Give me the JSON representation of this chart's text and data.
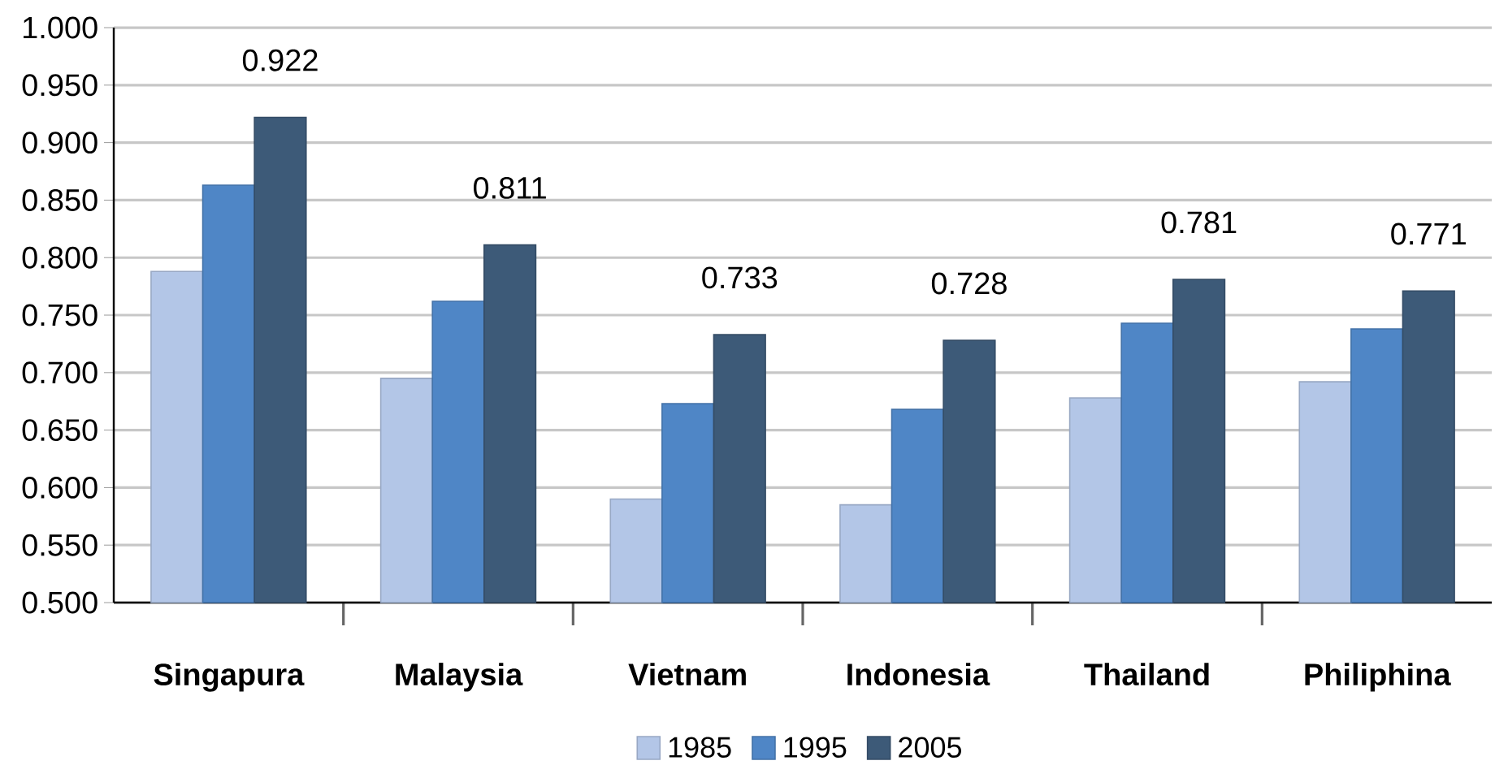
{
  "chart_data": {
    "type": "bar",
    "categories": [
      "Singapura",
      "Malaysia",
      "Vietnam",
      "Indonesia",
      "Thailand",
      "Philiphina"
    ],
    "series": [
      {
        "name": "1985",
        "color": "#b3c6e7",
        "values": [
          0.788,
          0.695,
          0.59,
          0.585,
          0.678,
          0.692
        ]
      },
      {
        "name": "1995",
        "color": "#4f86c6",
        "values": [
          0.863,
          0.762,
          0.673,
          0.668,
          0.743,
          0.738
        ]
      },
      {
        "name": "2005",
        "color": "#3d5a78",
        "values": [
          0.922,
          0.811,
          0.733,
          0.728,
          0.781,
          0.771
        ],
        "value_labels": [
          "0.922",
          "0.811",
          "0.733",
          "0.728",
          "0.781",
          "0.771"
        ]
      }
    ],
    "ylim": [
      0.5,
      1.0
    ],
    "yticks": [
      {
        "value": 0.5,
        "label": "0.500"
      },
      {
        "value": 0.55,
        "label": "0.550"
      },
      {
        "value": 0.6,
        "label": "0.600"
      },
      {
        "value": 0.65,
        "label": "0.650"
      },
      {
        "value": 0.7,
        "label": "0.700"
      },
      {
        "value": 0.75,
        "label": "0.750"
      },
      {
        "value": 0.8,
        "label": "0.800"
      },
      {
        "value": 0.85,
        "label": "0.850"
      },
      {
        "value": 0.9,
        "label": "0.900"
      },
      {
        "value": 0.95,
        "label": "0.950"
      },
      {
        "value": 1.0,
        "label": "1.000"
      }
    ],
    "grid": "y",
    "legend": "bottom"
  }
}
